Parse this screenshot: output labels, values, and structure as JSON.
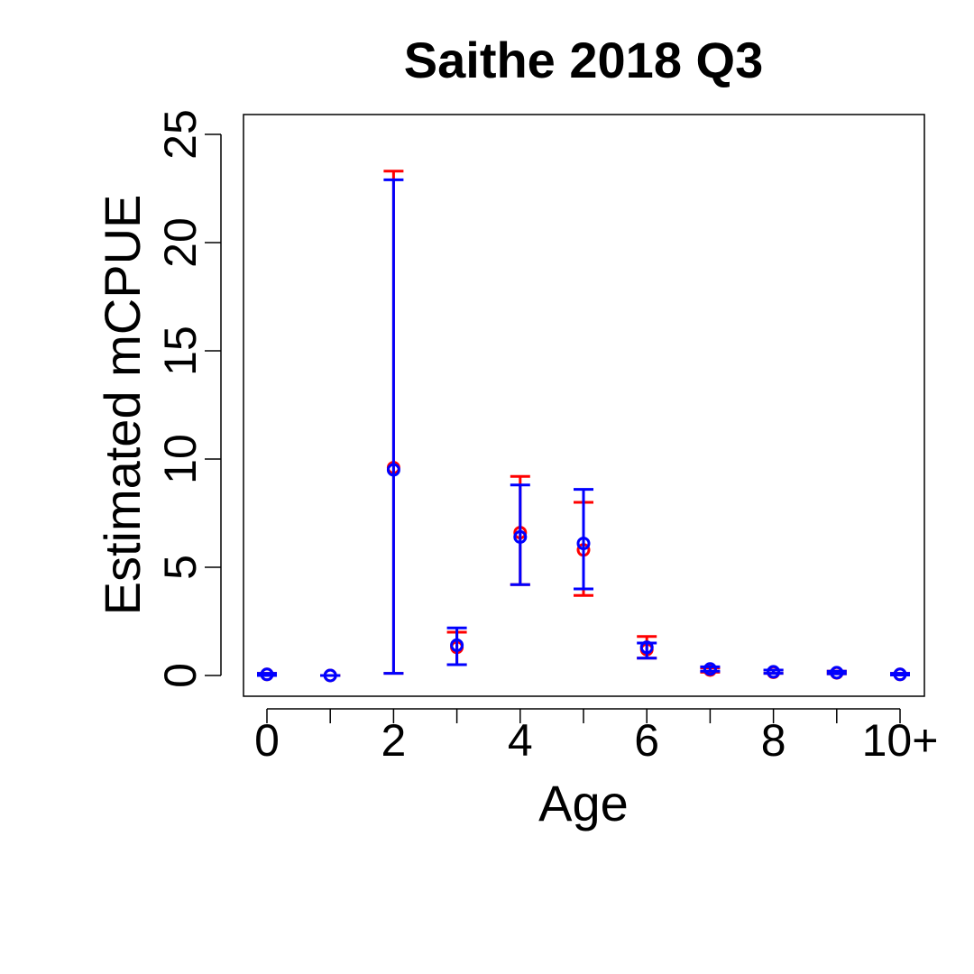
{
  "chart_data": {
    "type": "scatter",
    "title": "Saithe 2018 Q3",
    "xlabel": "Age",
    "ylabel": "Estimated mCPUE",
    "x_categories": [
      "0",
      "1",
      "2",
      "3",
      "4",
      "5",
      "6",
      "7",
      "8",
      "9",
      "10+"
    ],
    "x_tick_labels": [
      "0",
      "",
      "2",
      "",
      "4",
      "",
      "6",
      "",
      "8",
      "",
      "10+"
    ],
    "y_ticks": [
      0,
      5,
      10,
      15,
      20,
      25
    ],
    "ylim": [
      -1,
      26
    ],
    "grid": false,
    "series": [
      {
        "color": "#ff0000",
        "points": [
          {
            "x": "0",
            "y": 0.05,
            "lower": 0.0,
            "upper": 0.1
          },
          {
            "x": "1",
            "y": 0.0,
            "lower": 0.0,
            "upper": 0.0
          },
          {
            "x": "2",
            "y": 9.6,
            "lower": 0.1,
            "upper": 23.3
          },
          {
            "x": "3",
            "y": 1.3,
            "lower": 0.5,
            "upper": 2.0
          },
          {
            "x": "4",
            "y": 6.6,
            "lower": 4.2,
            "upper": 9.2
          },
          {
            "x": "5",
            "y": 5.8,
            "lower": 3.7,
            "upper": 8.0
          },
          {
            "x": "6",
            "y": 1.2,
            "lower": 0.8,
            "upper": 1.8
          },
          {
            "x": "7",
            "y": 0.25,
            "lower": 0.15,
            "upper": 0.35
          },
          {
            "x": "8",
            "y": 0.15,
            "lower": 0.1,
            "upper": 0.25
          },
          {
            "x": "9",
            "y": 0.12,
            "lower": 0.08,
            "upper": 0.2
          },
          {
            "x": "10+",
            "y": 0.05,
            "lower": 0.02,
            "upper": 0.1
          }
        ]
      },
      {
        "color": "#0000ff",
        "points": [
          {
            "x": "0",
            "y": 0.05,
            "lower": 0.0,
            "upper": 0.1
          },
          {
            "x": "1",
            "y": 0.0,
            "lower": 0.0,
            "upper": 0.0
          },
          {
            "x": "2",
            "y": 9.5,
            "lower": 0.1,
            "upper": 22.9
          },
          {
            "x": "3",
            "y": 1.4,
            "lower": 0.5,
            "upper": 2.2
          },
          {
            "x": "4",
            "y": 6.4,
            "lower": 4.2,
            "upper": 8.8
          },
          {
            "x": "5",
            "y": 6.1,
            "lower": 4.0,
            "upper": 8.6
          },
          {
            "x": "6",
            "y": 1.3,
            "lower": 0.8,
            "upper": 1.5
          },
          {
            "x": "7",
            "y": 0.3,
            "lower": 0.2,
            "upper": 0.4
          },
          {
            "x": "8",
            "y": 0.17,
            "lower": 0.1,
            "upper": 0.25
          },
          {
            "x": "9",
            "y": 0.13,
            "lower": 0.08,
            "upper": 0.2
          },
          {
            "x": "10+",
            "y": 0.05,
            "lower": 0.02,
            "upper": 0.1
          }
        ]
      }
    ]
  }
}
